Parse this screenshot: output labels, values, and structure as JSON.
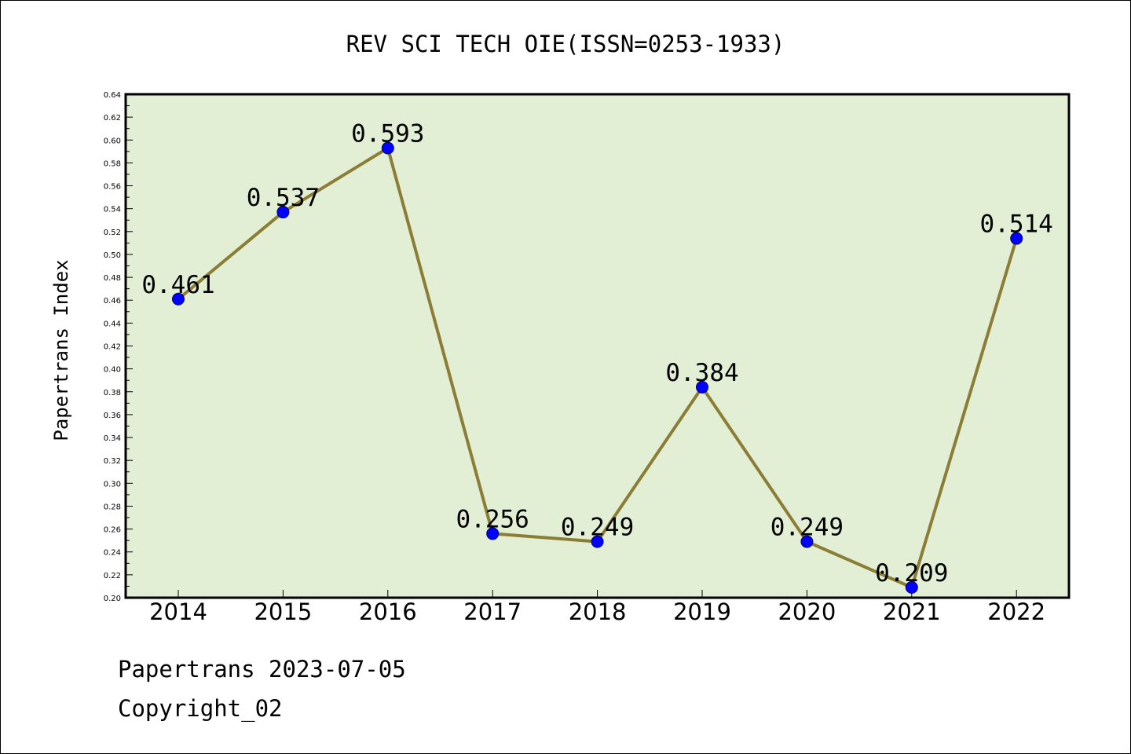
{
  "chart_data": {
    "type": "line",
    "title": "REV SCI TECH OIE(ISSN=0253-1933)",
    "xlabel": "",
    "ylabel": "Papertrans Index",
    "categories": [
      "2014",
      "2015",
      "2016",
      "2017",
      "2018",
      "2019",
      "2020",
      "2021",
      "2022"
    ],
    "series": [
      {
        "values": [
          0.461,
          0.537,
          0.593,
          0.256,
          0.249,
          0.384,
          0.249,
          0.209,
          0.514
        ],
        "data_labels": [
          "0.461",
          "0.537",
          "0.593",
          "0.256",
          "0.249",
          "0.384",
          "0.249",
          "0.209",
          "0.514"
        ]
      }
    ],
    "ylim": [
      0.2,
      0.64
    ],
    "yticks": [
      "0.20",
      "0.22",
      "0.24",
      "0.26",
      "0.28",
      "0.30",
      "0.32",
      "0.34",
      "0.36",
      "0.38",
      "0.40",
      "0.42",
      "0.44",
      "0.46",
      "0.48",
      "0.50",
      "0.52",
      "0.54",
      "0.56",
      "0.58",
      "0.60",
      "0.62",
      "0.64"
    ],
    "grid": false,
    "colors": {
      "plot_background": "#e2efd5",
      "line": "#8b7d35",
      "marker": "#0000ff"
    }
  },
  "footer": {
    "line1": "Papertrans 2023-07-05",
    "line2": "Copyright_02"
  }
}
